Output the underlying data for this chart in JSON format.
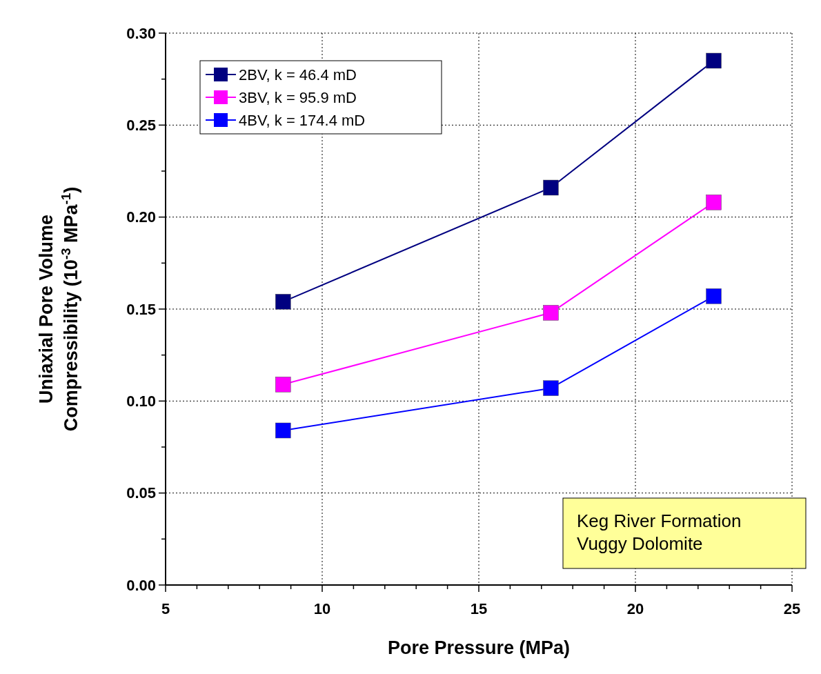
{
  "chart_data": {
    "type": "line",
    "xlabel": "Pore Pressure (MPa)",
    "ylabel": "Uniaxial Pore Volume\nCompressibility (10$^{-3}$ MPa$^{-1}$)",
    "x": [
      8.75,
      17.3,
      22.5
    ],
    "series": [
      {
        "name": "2BV, k = 46.4 mD",
        "color": "#000080",
        "values": [
          0.154,
          0.216,
          0.285
        ]
      },
      {
        "name": "3BV, k = 95.9 mD",
        "color": "#ff00ff",
        "values": [
          0.109,
          0.148,
          0.208
        ]
      },
      {
        "name": "4BV, k = 174.4 mD",
        "color": "#0000ff",
        "values": [
          0.084,
          0.107,
          0.157
        ]
      }
    ],
    "xlim": [
      5,
      25
    ],
    "xticks": [
      5,
      {
        "value": 6,
        "label": null
      },
      {
        "value": 7,
        "label": null
      },
      {
        "value": 8,
        "label": null
      },
      {
        "value": 9,
        "label": null
      },
      10,
      {
        "value": 11,
        "label": null
      },
      {
        "value": 12,
        "label": null
      },
      {
        "value": 13,
        "label": null
      },
      {
        "value": 14,
        "label": null
      },
      15,
      {
        "value": 16,
        "label": null
      },
      {
        "value": 17,
        "label": null
      },
      {
        "value": 18,
        "label": null
      },
      {
        "value": 19,
        "label": null
      },
      20,
      {
        "value": 21,
        "label": null
      },
      {
        "value": 22,
        "label": null
      },
      {
        "value": 23,
        "label": null
      },
      {
        "value": 24,
        "label": null
      },
      25
    ],
    "ylim": [
      0,
      0.3
    ],
    "yticks": [
      {
        "value": 0,
        "label": "0.00"
      },
      {
        "value": 0.025,
        "label": null
      },
      {
        "value": 0.05,
        "label": "0.05"
      },
      {
        "value": 0.075,
        "label": null
      },
      {
        "value": 0.1,
        "label": "0.10"
      },
      {
        "value": 0.125,
        "label": null
      },
      {
        "value": 0.15,
        "label": "0.15"
      },
      {
        "value": 0.175,
        "label": null
      },
      {
        "value": 0.2,
        "label": "0.20"
      },
      {
        "value": 0.225,
        "label": null
      },
      {
        "value": 0.25,
        "label": "0.25"
      },
      {
        "value": 0.275,
        "label": null
      },
      {
        "value": 0.3,
        "label": "0.30"
      }
    ],
    "grid": true,
    "legend": "top left",
    "marker": "square",
    "line_style": "solid",
    "annotations": [
      "Keg River Formation\nVuggy Dolomite"
    ]
  }
}
